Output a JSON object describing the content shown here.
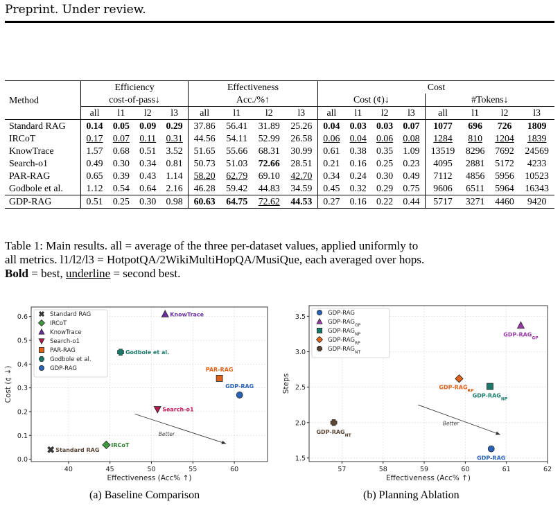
{
  "header": "Preprint. Under review.",
  "table": {
    "col_method": "Method",
    "group_efficiency": "Efficiency",
    "group_effectiveness": "Effectiveness",
    "group_cost": "Cost",
    "sub_cop": "cost-of-pass↓",
    "sub_acc": "Acc./%↑",
    "sub_cost": "Cost (¢)↓",
    "sub_tokens": "#Tokens↓",
    "splits": [
      "all",
      "l1",
      "l2",
      "l3"
    ],
    "rows": [
      {
        "method": "Standard RAG",
        "cells": [
          {
            "v": "0.14",
            "s": "b"
          },
          {
            "v": "0.05",
            "s": "b"
          },
          {
            "v": "0.09",
            "s": "b"
          },
          {
            "v": "0.29",
            "s": "b"
          },
          {
            "v": "37.86"
          },
          {
            "v": "56.41"
          },
          {
            "v": "31.89"
          },
          {
            "v": "25.26"
          },
          {
            "v": "0.04",
            "s": "b"
          },
          {
            "v": "0.03",
            "s": "b"
          },
          {
            "v": "0.03",
            "s": "b"
          },
          {
            "v": "0.07",
            "s": "b"
          },
          {
            "v": "1077",
            "s": "b"
          },
          {
            "v": "696",
            "s": "b"
          },
          {
            "v": "726",
            "s": "b"
          },
          {
            "v": "1809",
            "s": "b"
          }
        ]
      },
      {
        "method": "IRCoT",
        "cells": [
          {
            "v": "0.17",
            "s": "u"
          },
          {
            "v": "0.07",
            "s": "u"
          },
          {
            "v": "0.11",
            "s": "u"
          },
          {
            "v": "0.31",
            "s": "u"
          },
          {
            "v": "44.56"
          },
          {
            "v": "54.11"
          },
          {
            "v": "52.99"
          },
          {
            "v": "26.58"
          },
          {
            "v": "0.06",
            "s": "u"
          },
          {
            "v": "0.04",
            "s": "u"
          },
          {
            "v": "0.06",
            "s": "u"
          },
          {
            "v": "0.08",
            "s": "u"
          },
          {
            "v": "1284",
            "s": "u"
          },
          {
            "v": "810",
            "s": "u"
          },
          {
            "v": "1204",
            "s": "u"
          },
          {
            "v": "1839",
            "s": "u"
          }
        ]
      },
      {
        "method": "KnowTrace",
        "cells": [
          {
            "v": "1.57"
          },
          {
            "v": "0.68"
          },
          {
            "v": "0.51"
          },
          {
            "v": "3.52"
          },
          {
            "v": "51.65"
          },
          {
            "v": "55.66"
          },
          {
            "v": "68.31"
          },
          {
            "v": "30.99"
          },
          {
            "v": "0.61"
          },
          {
            "v": "0.38"
          },
          {
            "v": "0.35"
          },
          {
            "v": "1.09"
          },
          {
            "v": "13519"
          },
          {
            "v": "8296"
          },
          {
            "v": "7692"
          },
          {
            "v": "24569"
          }
        ]
      },
      {
        "method": "Search-o1",
        "cells": [
          {
            "v": "0.49"
          },
          {
            "v": "0.30"
          },
          {
            "v": "0.34"
          },
          {
            "v": "0.81"
          },
          {
            "v": "50.73"
          },
          {
            "v": "51.03"
          },
          {
            "v": "72.66",
            "s": "b"
          },
          {
            "v": "28.51"
          },
          {
            "v": "0.21"
          },
          {
            "v": "0.16"
          },
          {
            "v": "0.25"
          },
          {
            "v": "0.23"
          },
          {
            "v": "4095"
          },
          {
            "v": "2881"
          },
          {
            "v": "5172"
          },
          {
            "v": "4233"
          }
        ]
      },
      {
        "method": "PAR-RAG",
        "cells": [
          {
            "v": "0.65"
          },
          {
            "v": "0.39"
          },
          {
            "v": "0.43"
          },
          {
            "v": "1.14"
          },
          {
            "v": "58.20",
            "s": "u"
          },
          {
            "v": "62.79",
            "s": "u"
          },
          {
            "v": "69.10"
          },
          {
            "v": "42.70",
            "s": "u"
          },
          {
            "v": "0.34"
          },
          {
            "v": "0.24"
          },
          {
            "v": "0.30"
          },
          {
            "v": "0.49"
          },
          {
            "v": "7112"
          },
          {
            "v": "4856"
          },
          {
            "v": "5956"
          },
          {
            "v": "10523"
          }
        ]
      },
      {
        "method": "Godbole et al.",
        "cells": [
          {
            "v": "1.12"
          },
          {
            "v": "0.54"
          },
          {
            "v": "0.64"
          },
          {
            "v": "2.16"
          },
          {
            "v": "46.28"
          },
          {
            "v": "59.42"
          },
          {
            "v": "44.83"
          },
          {
            "v": "34.59"
          },
          {
            "v": "0.45"
          },
          {
            "v": "0.32"
          },
          {
            "v": "0.29"
          },
          {
            "v": "0.75"
          },
          {
            "v": "9606"
          },
          {
            "v": "6511"
          },
          {
            "v": "5964"
          },
          {
            "v": "16343"
          }
        ]
      }
    ],
    "final_row": {
      "method": "GDP-RAG",
      "cells": [
        {
          "v": "0.51"
        },
        {
          "v": "0.25"
        },
        {
          "v": "0.30"
        },
        {
          "v": "0.98"
        },
        {
          "v": "60.63",
          "s": "b"
        },
        {
          "v": "64.75",
          "s": "b"
        },
        {
          "v": "72.62",
          "s": "u"
        },
        {
          "v": "44.53",
          "s": "b"
        },
        {
          "v": "0.27"
        },
        {
          "v": "0.16"
        },
        {
          "v": "0.22"
        },
        {
          "v": "0.44"
        },
        {
          "v": "5717"
        },
        {
          "v": "3271"
        },
        {
          "v": "4460"
        },
        {
          "v": "9420"
        }
      ]
    }
  },
  "caption": {
    "line1": "Table 1: Main results. all = average of the three per-dataset values, applied uniformly to",
    "line2": "all metrics. l1/l2/l3 = HotpotQA/2WikiMultiHopQA/MusiQue, each averaged over hops.",
    "bold_word": "Bold",
    "mid": " = best, ",
    "underline_word": "underline",
    "end": " = second best."
  },
  "subcaptions": {
    "a": "(a) Baseline Comparison",
    "b": "(b) Planning Ablation"
  },
  "chart_data": [
    {
      "type": "scatter",
      "xlabel": "Effectiveness (Acc% ↑)",
      "ylabel": "Cost (¢ ↓)",
      "xlim": [
        35.5,
        64
      ],
      "ylim": [
        -0.01,
        0.64
      ],
      "xticks": [
        40,
        45,
        50,
        55,
        60
      ],
      "yticks": [
        0.0,
        0.1,
        0.2,
        0.3,
        0.4,
        0.5,
        0.6
      ],
      "ytick_labels": [
        "0.0",
        "0.1",
        "0.2",
        "0.3",
        "0.4",
        "0.5",
        "0.6"
      ],
      "legend_position": "top-left",
      "arrow": {
        "from": [
          48,
          0.19
        ],
        "to": [
          59,
          0.065
        ],
        "label": "Better"
      },
      "points": [
        {
          "name": "Standard RAG",
          "x": 37.86,
          "y": 0.04,
          "marker": "x",
          "color": "#3a3a3a",
          "label_color": "#5b4636",
          "label_side": "right"
        },
        {
          "name": "IRCoT",
          "x": 44.56,
          "y": 0.06,
          "marker": "diamond",
          "color": "#3f9a3f",
          "label_color": "#2f7d2f",
          "label_side": "right"
        },
        {
          "name": "KnowTrace",
          "x": 51.65,
          "y": 0.61,
          "marker": "triangle-up",
          "color": "#6a2ea0",
          "label_color": "#6a2ea0",
          "label_side": "right"
        },
        {
          "name": "Search-o1",
          "x": 50.73,
          "y": 0.21,
          "marker": "triangle-down",
          "color": "#b5194f",
          "label_color": "#c2185b",
          "label_side": "right"
        },
        {
          "name": "PAR-RAG",
          "x": 58.2,
          "y": 0.34,
          "marker": "square",
          "color": "#e0621a",
          "label_color": "#e0621a",
          "label_side": "above"
        },
        {
          "name": "Godbole et al.",
          "x": 46.28,
          "y": 0.45,
          "marker": "plus",
          "color": "#1a7a6a",
          "label_color": "#1a7a6a",
          "label_side": "right"
        },
        {
          "name": "GDP-RAG",
          "x": 60.63,
          "y": 0.27,
          "marker": "circle",
          "color": "#2a64b8",
          "label_color": "#2a64b8",
          "label_side": "above"
        }
      ]
    },
    {
      "type": "scatter",
      "xlabel": "Effectiveness (Acc% ↑)",
      "ylabel": "Steps",
      "xlim": [
        56.2,
        62
      ],
      "ylim": [
        1.45,
        3.65
      ],
      "xticks": [
        57,
        58,
        59,
        60,
        61,
        62
      ],
      "yticks": [
        1.5,
        2.0,
        2.5,
        3.0,
        3.5
      ],
      "ytick_labels": [
        "1.5",
        "2.0",
        "2.5",
        "3.0",
        "3.5"
      ],
      "legend_position": "top-left",
      "arrow": {
        "from": [
          58.85,
          2.25
        ],
        "to": [
          60.85,
          1.83
        ],
        "label": "Better"
      },
      "points": [
        {
          "name": "GDP-RAG",
          "sub": "",
          "x": 60.63,
          "y": 1.63,
          "marker": "circle",
          "color": "#2a64b8",
          "label_color": "#2a64b8",
          "label_side": "below"
        },
        {
          "name": "GDP-RAG",
          "sub": "GP",
          "x": 61.35,
          "y": 3.37,
          "marker": "triangle-up",
          "color": "#9a3aa8",
          "label_color": "#9a3aa8",
          "label_side": "below"
        },
        {
          "name": "GDP-RAG",
          "sub": "NP",
          "x": 60.6,
          "y": 2.51,
          "marker": "square",
          "color": "#1a7a6a",
          "label_color": "#1a7a6a",
          "label_side": "below"
        },
        {
          "name": "GDP-RAG",
          "sub": "RP",
          "x": 59.85,
          "y": 2.62,
          "marker": "diamond",
          "color": "#e0621a",
          "label_color": "#e0621a",
          "label_side": "below-left"
        },
        {
          "name": "GDP-RAG",
          "sub": "NT",
          "x": 56.8,
          "y": 2.0,
          "marker": "plus",
          "color": "#5b4636",
          "label_color": "#5b4636",
          "label_side": "below"
        }
      ]
    }
  ]
}
